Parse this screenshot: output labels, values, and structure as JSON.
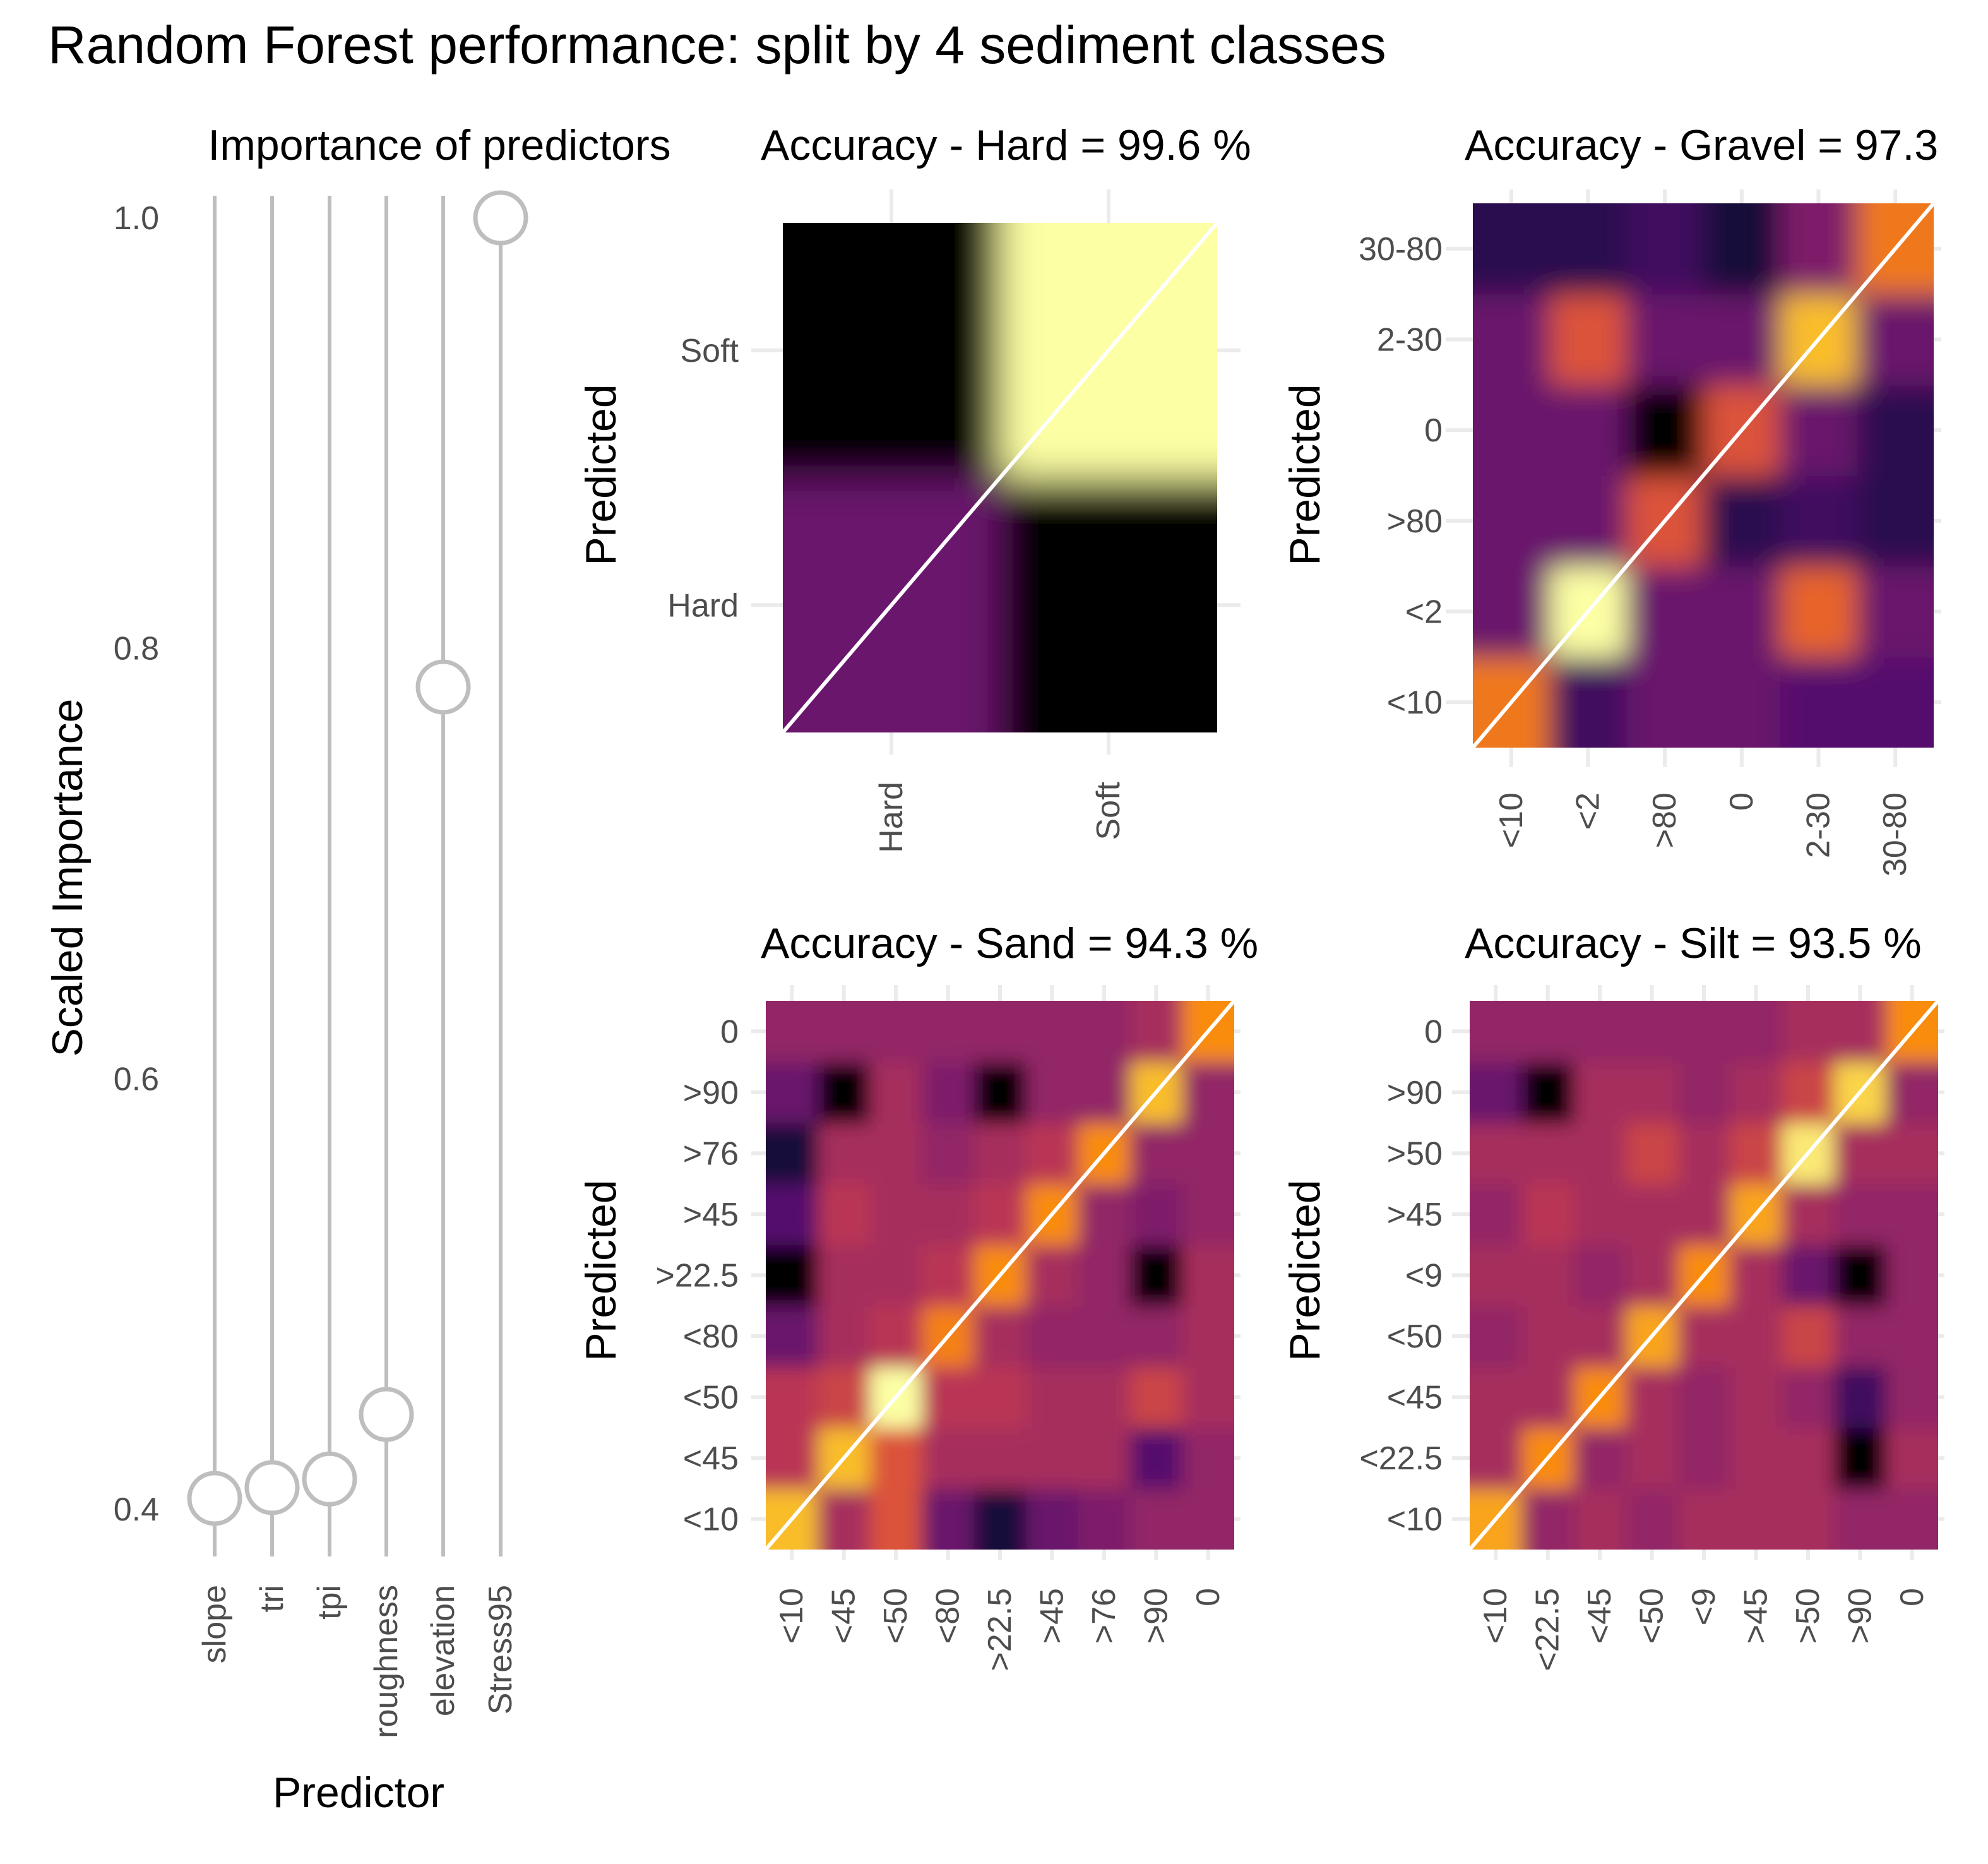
{
  "title": "Random Forest performance: split by 4 sediment classes",
  "colors": {
    "stem": "#bebebe",
    "grid": "#ebebeb",
    "diagonal": "#ffffff",
    "palette": "inferno"
  },
  "chart_data": [
    {
      "id": "importance",
      "type": "lollipop",
      "title": "Importance of predictors",
      "xlabel": "Predictor",
      "ylabel": "Scaled Importance",
      "categories": [
        "slope",
        "tri",
        "tpi",
        "roughness",
        "elevation",
        "Stress95"
      ],
      "values": [
        0.405,
        0.41,
        0.414,
        0.444,
        0.782,
        1.0
      ],
      "ylim": [
        0.38,
        1.03
      ],
      "yticks": [
        "0.4",
        "0.6",
        "0.8",
        "1.0"
      ],
      "grid": true
    },
    {
      "id": "hard",
      "type": "heatmap",
      "title": "Accuracy - Hard = 99.6 %",
      "ylabel": "Predicted",
      "x_categories": [
        "Hard",
        "Soft"
      ],
      "y_categories": [
        "Hard",
        "Soft"
      ],
      "values": [
        [
          0.3,
          0.0
        ],
        [
          0.0,
          1.0
        ]
      ],
      "grid": true
    },
    {
      "id": "gravel",
      "type": "heatmap",
      "title": "Accuracy - Gravel = 97.3",
      "ylabel": "Predicted",
      "x_categories": [
        "<10",
        "<2",
        ">80",
        "0",
        "2-30",
        "30-80"
      ],
      "y_categories": [
        "<10",
        "<2",
        ">80",
        "0",
        "2-30",
        "30-80"
      ],
      "values": [
        [
          0.7,
          0.2,
          0.3,
          0.3,
          0.25,
          0.25
        ],
        [
          0.3,
          1.0,
          0.3,
          0.3,
          0.65,
          0.3
        ],
        [
          0.3,
          0.3,
          0.6,
          0.15,
          0.2,
          0.15
        ],
        [
          0.3,
          0.3,
          0.0,
          0.6,
          0.3,
          0.15
        ],
        [
          0.3,
          0.6,
          0.3,
          0.3,
          0.85,
          0.3
        ],
        [
          0.15,
          0.15,
          0.2,
          0.1,
          0.35,
          0.7
        ]
      ],
      "grid": true
    },
    {
      "id": "sand",
      "type": "heatmap",
      "title": "Accuracy - Sand = 94.3 %",
      "ylabel": "Predicted",
      "x_categories": [
        "<10",
        "<45",
        "<50",
        "<80",
        ">22.5",
        ">45",
        ">76",
        ">90",
        "0"
      ],
      "y_categories": [
        "<10",
        "<45",
        "<50",
        "<80",
        ">22.5",
        ">45",
        ">76",
        ">90",
        "0"
      ],
      "values": [
        [
          0.85,
          0.45,
          0.6,
          0.3,
          0.1,
          0.3,
          0.35,
          0.4,
          0.4
        ],
        [
          0.5,
          0.85,
          0.6,
          0.45,
          0.45,
          0.45,
          0.45,
          0.25,
          0.4
        ],
        [
          0.5,
          0.55,
          1.0,
          0.5,
          0.5,
          0.45,
          0.45,
          0.55,
          0.45
        ],
        [
          0.3,
          0.45,
          0.5,
          0.72,
          0.45,
          0.4,
          0.4,
          0.4,
          0.45
        ],
        [
          0.0,
          0.45,
          0.45,
          0.5,
          0.75,
          0.45,
          0.4,
          0.0,
          0.45
        ],
        [
          0.25,
          0.5,
          0.45,
          0.45,
          0.5,
          0.75,
          0.4,
          0.35,
          0.4
        ],
        [
          0.1,
          0.45,
          0.45,
          0.4,
          0.45,
          0.5,
          0.75,
          0.4,
          0.4
        ],
        [
          0.3,
          0.0,
          0.45,
          0.35,
          0.0,
          0.4,
          0.4,
          0.85,
          0.4
        ],
        [
          0.4,
          0.4,
          0.4,
          0.4,
          0.4,
          0.4,
          0.4,
          0.45,
          0.75
        ]
      ],
      "grid": true
    },
    {
      "id": "silt",
      "type": "heatmap",
      "title": "Accuracy - Silt = 93.5 %",
      "ylabel": "Predicted",
      "x_categories": [
        "<10",
        "<22.5",
        "<45",
        "<50",
        "<9",
        ">45",
        ">50",
        ">90",
        "0"
      ],
      "y_categories": [
        "<10",
        "<22.5",
        "<45",
        "<50",
        "<9",
        ">45",
        ">50",
        ">90",
        "0"
      ],
      "values": [
        [
          0.8,
          0.4,
          0.45,
          0.4,
          0.45,
          0.45,
          0.45,
          0.4,
          0.4
        ],
        [
          0.45,
          0.75,
          0.4,
          0.45,
          0.4,
          0.45,
          0.45,
          0.0,
          0.45
        ],
        [
          0.45,
          0.45,
          0.75,
          0.45,
          0.4,
          0.45,
          0.4,
          0.2,
          0.4
        ],
        [
          0.4,
          0.45,
          0.45,
          0.8,
          0.45,
          0.45,
          0.55,
          0.4,
          0.4
        ],
        [
          0.45,
          0.45,
          0.4,
          0.45,
          0.75,
          0.45,
          0.3,
          0.0,
          0.4
        ],
        [
          0.4,
          0.5,
          0.45,
          0.45,
          0.45,
          0.8,
          0.45,
          0.4,
          0.4
        ],
        [
          0.45,
          0.45,
          0.45,
          0.55,
          0.45,
          0.55,
          0.95,
          0.45,
          0.45
        ],
        [
          0.3,
          0.0,
          0.45,
          0.45,
          0.4,
          0.45,
          0.55,
          0.9,
          0.4
        ],
        [
          0.4,
          0.4,
          0.4,
          0.4,
          0.4,
          0.4,
          0.45,
          0.45,
          0.75
        ]
      ],
      "grid": true
    }
  ]
}
